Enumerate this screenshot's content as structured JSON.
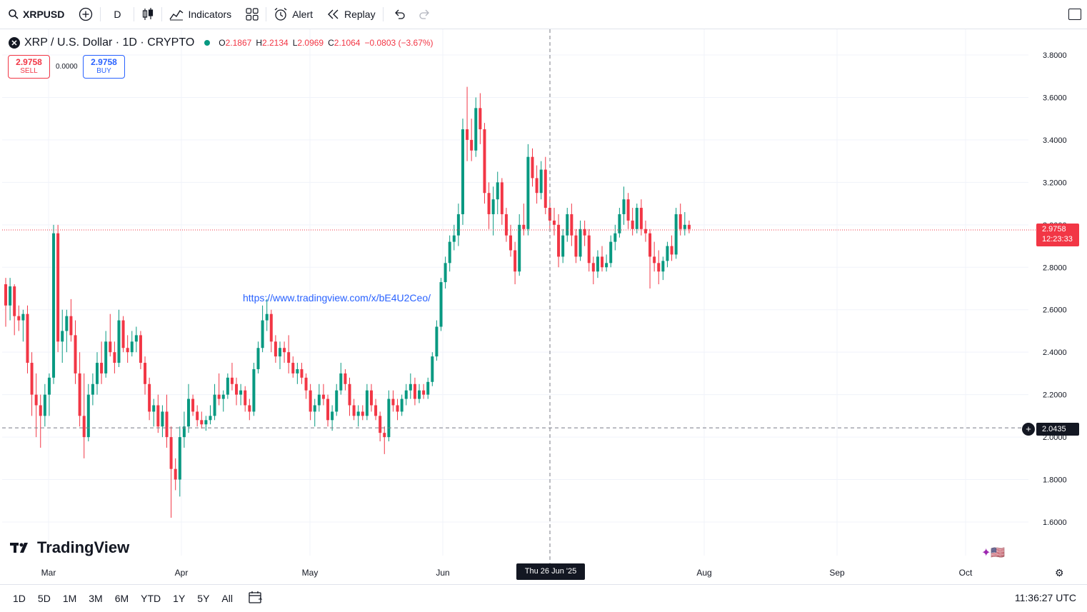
{
  "toolbar": {
    "symbol": "XRPUSD",
    "interval": "D",
    "indicators_label": "Indicators",
    "alert_label": "Alert",
    "replay_label": "Replay"
  },
  "legend": {
    "title": "XRP / U.S. Dollar · 1D · CRYPTO",
    "logo_glyph": "✕",
    "open_key": "O",
    "open": "2.1867",
    "high_key": "H",
    "high": "2.2134",
    "low_key": "L",
    "low": "2.0969",
    "close_key": "C",
    "close": "2.1064",
    "change": "−0.0803 (−3.67%)"
  },
  "trade": {
    "sell_price": "2.9758",
    "sell_label": "SELL",
    "spread": "0.0000",
    "buy_price": "2.9758",
    "buy_label": "BUY"
  },
  "url_text": "https://www.tradingview.com/x/bE4U2Ceo/",
  "watermark": "TradingView",
  "price_tags": {
    "last_price": "2.9758",
    "countdown": "12:23:33",
    "crosshair_price": "2.0435"
  },
  "time_tag": "Thu 26 Jun '25",
  "bottombar": {
    "ranges": [
      "1D",
      "5D",
      "1M",
      "3M",
      "6M",
      "YTD",
      "1Y",
      "5Y",
      "All"
    ],
    "clock": "11:36:27 UTC"
  },
  "colors": {
    "up": "#089981",
    "down": "#f23645",
    "accent": "#2962ff"
  },
  "chart_data": {
    "type": "candlestick",
    "title": "XRP / U.S. Dollar · 1D · CRYPTO",
    "ylim": [
      1.55,
      3.85
    ],
    "y_ticks": [
      "1.6000",
      "1.8000",
      "2.0000",
      "2.2000",
      "2.4000",
      "2.6000",
      "2.8000",
      "3.0000",
      "3.2000",
      "3.4000",
      "3.6000",
      "3.8000"
    ],
    "x_ticks": [
      "Mar",
      "Apr",
      "May",
      "Jun",
      "Aug",
      "Sep",
      "Oct"
    ],
    "last_price": 2.9758,
    "crosshair_price": 2.0435,
    "series": [
      {
        "name": "XRPUSD",
        "ohlc": [
          [
            2.72,
            2.75,
            2.52,
            2.62
          ],
          [
            2.62,
            2.75,
            2.55,
            2.71
          ],
          [
            2.71,
            2.72,
            2.48,
            2.57
          ],
          [
            2.57,
            2.62,
            2.5,
            2.55
          ],
          [
            2.55,
            2.6,
            2.45,
            2.58
          ],
          [
            2.58,
            2.62,
            2.3,
            2.35
          ],
          [
            2.35,
            2.4,
            2.1,
            2.2
          ],
          [
            2.2,
            2.3,
            2.0,
            2.15
          ],
          [
            2.15,
            2.2,
            1.95,
            2.1
          ],
          [
            2.1,
            2.25,
            2.05,
            2.2
          ],
          [
            2.2,
            2.3,
            2.1,
            2.28
          ],
          [
            2.28,
            3.0,
            2.25,
            2.96
          ],
          [
            2.96,
            3.0,
            2.4,
            2.45
          ],
          [
            2.45,
            2.6,
            2.35,
            2.5
          ],
          [
            2.5,
            2.6,
            2.4,
            2.57
          ],
          [
            2.57,
            2.65,
            2.45,
            2.48
          ],
          [
            2.48,
            2.55,
            2.25,
            2.3
          ],
          [
            2.3,
            2.4,
            2.05,
            2.1
          ],
          [
            2.1,
            2.3,
            1.9,
            2.0
          ],
          [
            2.0,
            2.25,
            1.98,
            2.2
          ],
          [
            2.2,
            2.3,
            2.15,
            2.25
          ],
          [
            2.25,
            2.4,
            2.2,
            2.35
          ],
          [
            2.35,
            2.45,
            2.25,
            2.3
          ],
          [
            2.3,
            2.5,
            2.28,
            2.45
          ],
          [
            2.45,
            2.58,
            2.38,
            2.4
          ],
          [
            2.4,
            2.45,
            2.3,
            2.35
          ],
          [
            2.35,
            2.6,
            2.33,
            2.55
          ],
          [
            2.55,
            2.57,
            2.4,
            2.42
          ],
          [
            2.42,
            2.48,
            2.35,
            2.4
          ],
          [
            2.4,
            2.5,
            2.38,
            2.45
          ],
          [
            2.45,
            2.52,
            2.4,
            2.48
          ],
          [
            2.48,
            2.5,
            2.32,
            2.35
          ],
          [
            2.35,
            2.38,
            2.2,
            2.25
          ],
          [
            2.25,
            2.28,
            2.08,
            2.12
          ],
          [
            2.12,
            2.18,
            2.05,
            2.15
          ],
          [
            2.15,
            2.2,
            2.02,
            2.05
          ],
          [
            2.05,
            2.15,
            2.0,
            2.12
          ],
          [
            2.12,
            2.2,
            1.95,
            2.0
          ],
          [
            2.0,
            2.05,
            1.62,
            1.85
          ],
          [
            1.85,
            1.9,
            1.75,
            1.8
          ],
          [
            1.8,
            2.05,
            1.72,
            2.0
          ],
          [
            2.0,
            2.12,
            1.95,
            2.05
          ],
          [
            2.05,
            2.25,
            2.02,
            2.18
          ],
          [
            2.18,
            2.2,
            2.1,
            2.12
          ],
          [
            2.12,
            2.15,
            2.05,
            2.08
          ],
          [
            2.08,
            2.12,
            2.04,
            2.06
          ],
          [
            2.06,
            2.1,
            2.03,
            2.08
          ],
          [
            2.08,
            2.15,
            2.06,
            2.1
          ],
          [
            2.1,
            2.25,
            2.08,
            2.2
          ],
          [
            2.2,
            2.3,
            2.15,
            2.18
          ],
          [
            2.18,
            2.22,
            2.12,
            2.2
          ],
          [
            2.2,
            2.3,
            2.18,
            2.28
          ],
          [
            2.28,
            2.35,
            2.22,
            2.25
          ],
          [
            2.25,
            2.28,
            2.15,
            2.2
          ],
          [
            2.2,
            2.25,
            2.15,
            2.22
          ],
          [
            2.22,
            2.24,
            2.12,
            2.15
          ],
          [
            2.15,
            2.18,
            2.08,
            2.12
          ],
          [
            2.12,
            2.35,
            2.1,
            2.32
          ],
          [
            2.32,
            2.45,
            2.3,
            2.42
          ],
          [
            2.42,
            2.62,
            2.4,
            2.55
          ],
          [
            2.55,
            2.65,
            2.5,
            2.58
          ],
          [
            2.58,
            2.6,
            2.4,
            2.45
          ],
          [
            2.45,
            2.48,
            2.35,
            2.38
          ],
          [
            2.38,
            2.45,
            2.32,
            2.42
          ],
          [
            2.42,
            2.45,
            2.35,
            2.4
          ],
          [
            2.4,
            2.48,
            2.3,
            2.35
          ],
          [
            2.35,
            2.38,
            2.28,
            2.3
          ],
          [
            2.3,
            2.35,
            2.25,
            2.32
          ],
          [
            2.32,
            2.35,
            2.25,
            2.28
          ],
          [
            2.28,
            2.3,
            2.18,
            2.22
          ],
          [
            2.22,
            2.25,
            2.08,
            2.12
          ],
          [
            2.12,
            2.18,
            2.05,
            2.15
          ],
          [
            2.15,
            2.25,
            2.12,
            2.2
          ],
          [
            2.2,
            2.25,
            2.15,
            2.18
          ],
          [
            2.18,
            2.2,
            2.05,
            2.08
          ],
          [
            2.08,
            2.15,
            2.03,
            2.12
          ],
          [
            2.12,
            2.25,
            2.1,
            2.22
          ],
          [
            2.22,
            2.35,
            2.2,
            2.3
          ],
          [
            2.3,
            2.32,
            2.22,
            2.25
          ],
          [
            2.25,
            2.28,
            2.1,
            2.15
          ],
          [
            2.15,
            2.18,
            2.08,
            2.1
          ],
          [
            2.1,
            2.15,
            2.05,
            2.12
          ],
          [
            2.12,
            2.15,
            2.08,
            2.1
          ],
          [
            2.1,
            2.25,
            2.08,
            2.22
          ],
          [
            2.22,
            2.25,
            2.12,
            2.15
          ],
          [
            2.15,
            2.18,
            2.08,
            2.1
          ],
          [
            2.1,
            2.12,
            1.98,
            2.02
          ],
          [
            2.02,
            2.05,
            1.92,
            2.0
          ],
          [
            2.0,
            2.22,
            1.98,
            2.18
          ],
          [
            2.18,
            2.22,
            2.12,
            2.15
          ],
          [
            2.15,
            2.18,
            2.08,
            2.12
          ],
          [
            2.12,
            2.2,
            2.1,
            2.18
          ],
          [
            2.18,
            2.25,
            2.15,
            2.22
          ],
          [
            2.22,
            2.3,
            2.18,
            2.25
          ],
          [
            2.25,
            2.28,
            2.15,
            2.18
          ],
          [
            2.18,
            2.25,
            2.16,
            2.22
          ],
          [
            2.22,
            2.25,
            2.18,
            2.2
          ],
          [
            2.2,
            2.28,
            2.18,
            2.26
          ],
          [
            2.26,
            2.4,
            2.24,
            2.38
          ],
          [
            2.38,
            2.55,
            2.36,
            2.52
          ],
          [
            2.52,
            2.75,
            2.5,
            2.73
          ],
          [
            2.73,
            2.85,
            2.7,
            2.82
          ],
          [
            2.82,
            2.95,
            2.78,
            2.92
          ],
          [
            2.92,
            3.0,
            2.88,
            2.95
          ],
          [
            2.95,
            3.1,
            2.9,
            3.05
          ],
          [
            3.05,
            3.5,
            3.0,
            3.45
          ],
          [
            3.45,
            3.65,
            3.3,
            3.4
          ],
          [
            3.4,
            3.5,
            3.3,
            3.35
          ],
          [
            3.35,
            3.6,
            3.32,
            3.55
          ],
          [
            3.55,
            3.62,
            3.38,
            3.45
          ],
          [
            3.45,
            3.48,
            3.1,
            3.15
          ],
          [
            3.15,
            3.2,
            2.98,
            3.05
          ],
          [
            3.05,
            3.18,
            2.95,
            3.12
          ],
          [
            3.12,
            3.25,
            3.05,
            3.2
          ],
          [
            3.2,
            3.22,
            3.0,
            3.05
          ],
          [
            3.05,
            3.08,
            2.92,
            2.95
          ],
          [
            2.95,
            3.0,
            2.85,
            2.88
          ],
          [
            2.88,
            2.92,
            2.72,
            2.78
          ],
          [
            2.78,
            3.05,
            2.76,
            3.0
          ],
          [
            3.0,
            3.1,
            2.95,
            2.98
          ],
          [
            2.98,
            3.38,
            2.95,
            3.32
          ],
          [
            3.32,
            3.36,
            3.18,
            3.22
          ],
          [
            3.22,
            3.28,
            3.1,
            3.15
          ],
          [
            3.15,
            3.3,
            3.12,
            3.26
          ],
          [
            3.26,
            3.32,
            3.05,
            3.08
          ],
          [
            3.08,
            3.12,
            2.98,
            3.02
          ],
          [
            3.02,
            3.08,
            2.95,
            3.0
          ],
          [
            3.0,
            3.05,
            2.8,
            2.85
          ],
          [
            2.85,
            2.98,
            2.82,
            2.95
          ],
          [
            2.95,
            3.08,
            2.92,
            3.05
          ],
          [
            3.05,
            3.1,
            2.9,
            2.95
          ],
          [
            2.95,
            2.98,
            2.82,
            2.85
          ],
          [
            2.85,
            3.02,
            2.83,
            2.98
          ],
          [
            2.98,
            3.02,
            2.9,
            2.95
          ],
          [
            2.95,
            2.98,
            2.78,
            2.82
          ],
          [
            2.82,
            2.85,
            2.72,
            2.78
          ],
          [
            2.78,
            2.88,
            2.75,
            2.85
          ],
          [
            2.85,
            2.9,
            2.78,
            2.8
          ],
          [
            2.8,
            2.86,
            2.78,
            2.82
          ],
          [
            2.82,
            2.95,
            2.8,
            2.92
          ],
          [
            2.92,
            3.0,
            2.88,
            2.96
          ],
          [
            2.96,
            3.08,
            2.94,
            3.05
          ],
          [
            3.05,
            3.18,
            3.0,
            3.12
          ],
          [
            3.12,
            3.15,
            2.98,
            3.02
          ],
          [
            3.02,
            3.08,
            2.95,
            2.98
          ],
          [
            2.98,
            3.1,
            2.96,
            3.08
          ],
          [
            3.08,
            3.12,
            2.95,
            2.98
          ],
          [
            2.98,
            3.02,
            2.92,
            2.96
          ],
          [
            2.96,
            2.98,
            2.7,
            2.85
          ],
          [
            2.85,
            2.92,
            2.78,
            2.82
          ],
          [
            2.82,
            2.88,
            2.72,
            2.78
          ],
          [
            2.78,
            2.85,
            2.74,
            2.83
          ],
          [
            2.83,
            2.92,
            2.8,
            2.9
          ],
          [
            2.9,
            2.95,
            2.83,
            2.86
          ],
          [
            2.86,
            3.08,
            2.84,
            3.05
          ],
          [
            3.05,
            3.1,
            2.95,
            2.98
          ],
          [
            2.98,
            3.06,
            2.95,
            3.0
          ],
          [
            3.0,
            3.02,
            2.96,
            2.98
          ]
        ]
      }
    ]
  }
}
